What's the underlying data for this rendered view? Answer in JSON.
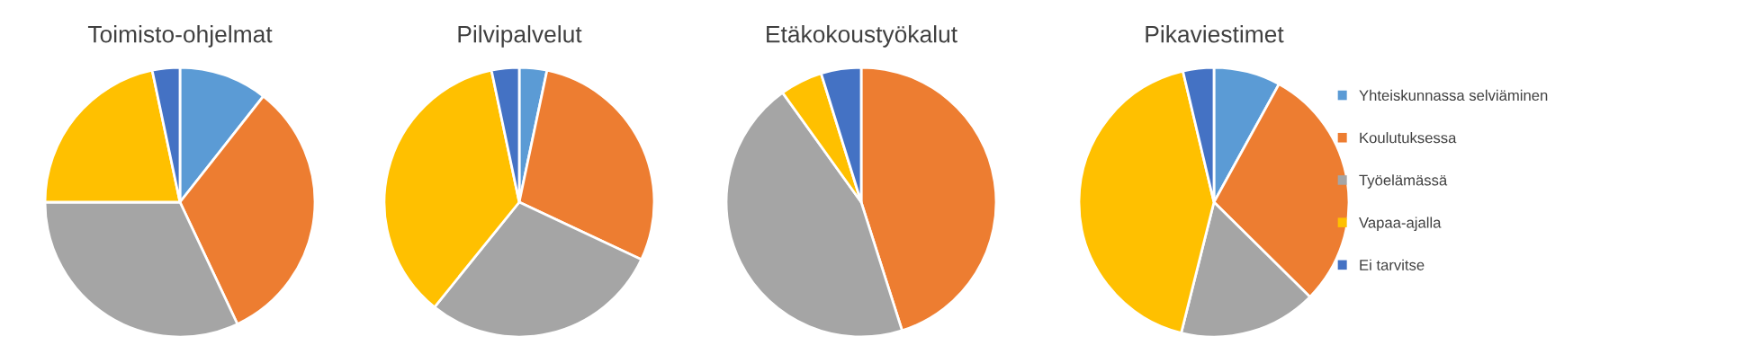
{
  "chart_data": [
    {
      "type": "pie",
      "title": "Toimisto-ohjelmat",
      "categories": [
        "Yhteiskunnassa selviäminen",
        "Koulutuksessa",
        "Työelämässä",
        "Vapaa-ajalla",
        "Ei tarvitse"
      ],
      "values": [
        10.6,
        32.4,
        32,
        21.7,
        3.3
      ],
      "colors": [
        "#5b9bd5",
        "#ed7d31",
        "#a5a5a5",
        "#ffc000",
        "#4472c4"
      ],
      "legend": "right"
    },
    {
      "type": "pie",
      "title": "Pilvipalvelut",
      "categories": [
        null,
        null,
        null,
        null,
        null
      ],
      "values": [
        3.3,
        28.7,
        28.8,
        35.9,
        3.3
      ],
      "colors": [
        "#5b9bd5",
        "#ed7d31",
        "#a5a5a5",
        "#ffc000",
        "#4472c4"
      ]
    },
    {
      "type": "pie",
      "title": "Etäkokoustyökalut",
      "categories": [
        null,
        null,
        null,
        null,
        null
      ],
      "values": [
        0,
        45.1,
        45,
        5.1,
        4.8
      ],
      "colors": [
        "#5b9bd5",
        "#ed7d31",
        "#a5a5a5",
        "#ffc000",
        "#4472c4"
      ]
    },
    {
      "type": "pie",
      "title": "Pikaviestimet",
      "categories": [
        null,
        null,
        null,
        null,
        null
      ],
      "values": [
        8,
        29.4,
        16.5,
        42.4,
        3.7
      ],
      "colors": [
        "#5b9bd5",
        "#ed7d31",
        "#a5a5a5",
        "#ffc000",
        "#4472c4"
      ]
    }
  ]
}
